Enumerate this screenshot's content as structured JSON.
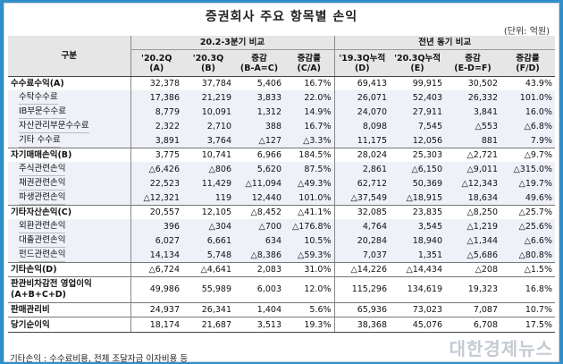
{
  "title": "증권회사 주요 항목별 손익",
  "unit": "(단위: 억원)",
  "header": {
    "category": "구분",
    "group1": "20.2-3분기 비교",
    "group2": "전년 동기 비교",
    "cols": [
      {
        "l1": "'20.2Q",
        "l2": "(A)"
      },
      {
        "l1": "'20.3Q",
        "l2": "(B)"
      },
      {
        "l1": "증감",
        "l2": "(B-A=C)"
      },
      {
        "l1": "증감률",
        "l2": "(C/A)"
      },
      {
        "l1": "'19.3Q누적",
        "l2": "(D)"
      },
      {
        "l1": "'20.3Q누적",
        "l2": "(E)"
      },
      {
        "l1": "증감",
        "l2": "(E-D=F)"
      },
      {
        "l1": "증감률",
        "l2": "(F/D)"
      }
    ]
  },
  "rows": [
    {
      "label": "수수료수익(A)",
      "type": "main",
      "v": [
        "32,378",
        "37,784",
        "5,406",
        "16.7%",
        "69,413",
        "99,915",
        "30,502",
        "43.9%"
      ]
    },
    {
      "label": "수탁수수료",
      "type": "sub",
      "v": [
        "17,386",
        "21,219",
        "3,833",
        "22.0%",
        "26,071",
        "52,403",
        "26,332",
        "101.0%"
      ]
    },
    {
      "label": "IB부문수수료",
      "type": "sub",
      "v": [
        "8,779",
        "10,091",
        "1,312",
        "14.9%",
        "24,070",
        "27,911",
        "3,841",
        "16.0%"
      ]
    },
    {
      "label": "자산관리부문수수료",
      "type": "sub",
      "v": [
        "2,322",
        "2,710",
        "388",
        "16.7%",
        "8,098",
        "7,545",
        "△553",
        "△6.8%"
      ]
    },
    {
      "label": "기타 수수료",
      "type": "sub",
      "v": [
        "3,891",
        "3,764",
        "△127",
        "△3.3%",
        "11,175",
        "12,056",
        "881",
        "7.9%"
      ]
    },
    {
      "label": "자기매매손익(B)",
      "type": "main",
      "v": [
        "3,775",
        "10,741",
        "6,966",
        "184.5%",
        "28,024",
        "25,303",
        "△2,721",
        "△9.7%"
      ]
    },
    {
      "label": "주식관련손익",
      "type": "sub",
      "v": [
        "△6,426",
        "△806",
        "5,620",
        "87.5%",
        "2,861",
        "△6,150",
        "△9,011",
        "△315.0%"
      ]
    },
    {
      "label": "채권관련손익",
      "type": "sub",
      "v": [
        "22,523",
        "11,429",
        "△11,094",
        "△49.3%",
        "62,712",
        "50,369",
        "△12,343",
        "△19.7%"
      ]
    },
    {
      "label": "파생관련손익",
      "type": "sub",
      "v": [
        "△12,321",
        "119",
        "12,440",
        "101.0%",
        "△37,549",
        "△18,915",
        "18,634",
        "49.6%"
      ]
    },
    {
      "label": "기타자산손익(C)",
      "type": "main",
      "v": [
        "20,557",
        "12,105",
        "△8,452",
        "△41.1%",
        "32,085",
        "23,835",
        "△8,250",
        "△25.7%"
      ]
    },
    {
      "label": "외환관련손익",
      "type": "sub",
      "v": [
        "396",
        "△304",
        "△700",
        "△176.8%",
        "4,764",
        "3,545",
        "△1,219",
        "△25.6%"
      ]
    },
    {
      "label": "대출관련손익",
      "type": "sub",
      "v": [
        "6,027",
        "6,661",
        "634",
        "10.5%",
        "20,284",
        "18,940",
        "△1,344",
        "△6.6%"
      ]
    },
    {
      "label": "펀드관련손익",
      "type": "sub",
      "v": [
        "14,134",
        "5,748",
        "△8,386",
        "△59.3%",
        "7,037",
        "1,351",
        "△5,686",
        "△80.8%"
      ]
    },
    {
      "label": "기타손익(D)",
      "type": "main",
      "v": [
        "△6,724",
        "△4,641",
        "2,083",
        "31.0%",
        "△14,226",
        "△14,434",
        "△208",
        "△1.5%"
      ]
    },
    {
      "label": "판관비차감전 영업이익(A+B+C+D)",
      "type": "tall",
      "v": [
        "49,986",
        "55,989",
        "6,003",
        "12.0%",
        "115,296",
        "134,619",
        "19,323",
        "16.8%"
      ]
    },
    {
      "label": "판매관리비",
      "type": "main",
      "v": [
        "24,937",
        "26,341",
        "1,404",
        "5.6%",
        "65,936",
        "73,023",
        "7,087",
        "10.7%"
      ]
    },
    {
      "label": "당기순이익",
      "type": "main",
      "v": [
        "18,174",
        "21,687",
        "3,513",
        "19.3%",
        "38,368",
        "45,076",
        "6,708",
        "17.5%"
      ]
    }
  ],
  "footnote": "기타손익 : 수수료비용, 전체 조달자금 이자비용 등",
  "watermark": "대한경제뉴스"
}
